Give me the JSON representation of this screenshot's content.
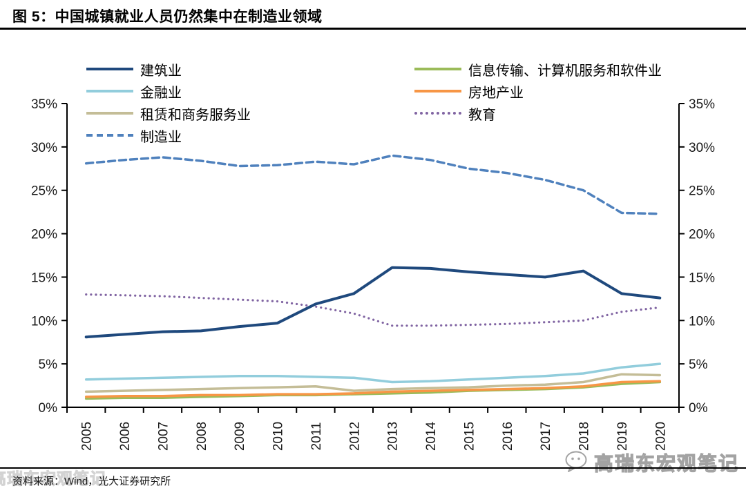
{
  "title": "图 5：中国城镇就业人员仍然集中在制造业领域",
  "source": "资料来源：Wind，光大证券研究所",
  "watermark_text": "高瑞东宏观笔记",
  "watermark_icon": "wechat-bubble-icon",
  "colors": {
    "axis": "#000000",
    "tick_label": "#1a1a1a",
    "construction": "#1F497D",
    "finance": "#92CDDC",
    "leasing": "#C4BD97",
    "manufacturing": "#4F81BD",
    "it_software": "#9BBB59",
    "real_estate": "#F79646",
    "education": "#8064A2"
  },
  "chart_data": {
    "type": "line",
    "title": "图 5：中国城镇就业人员仍然集中在制造业领域",
    "xlabel": "",
    "ylabel": "",
    "ylim": [
      0,
      35
    ],
    "grid": false,
    "legend_position": "top",
    "y_ticks": [
      "0%",
      "5%",
      "10%",
      "15%",
      "20%",
      "25%",
      "30%",
      "35%"
    ],
    "x": [
      "2005",
      "2006",
      "2007",
      "2008",
      "2009",
      "2010",
      "2011",
      "2012",
      "2013",
      "2014",
      "2015",
      "2016",
      "2017",
      "2018",
      "2019",
      "2020"
    ],
    "series": [
      {
        "name": "建筑业",
        "color": "#1F497D",
        "style": "solid",
        "width": 4,
        "values": [
          8.1,
          8.4,
          8.7,
          8.8,
          9.3,
          9.7,
          11.9,
          13.1,
          16.1,
          16.0,
          15.6,
          15.3,
          15.0,
          15.7,
          13.1,
          12.6
        ]
      },
      {
        "name": "金融业",
        "color": "#92CDDC",
        "style": "solid",
        "width": 3.5,
        "values": [
          3.2,
          3.3,
          3.4,
          3.5,
          3.6,
          3.6,
          3.5,
          3.4,
          2.9,
          3.0,
          3.2,
          3.4,
          3.6,
          3.9,
          4.6,
          5.0
        ]
      },
      {
        "name": "租赁和商务服务业",
        "color": "#C4BD97",
        "style": "solid",
        "width": 3.5,
        "values": [
          1.8,
          1.9,
          2.0,
          2.1,
          2.2,
          2.3,
          2.4,
          1.9,
          2.1,
          2.2,
          2.3,
          2.5,
          2.6,
          2.9,
          3.8,
          3.7
        ]
      },
      {
        "name": "制造业",
        "color": "#4F81BD",
        "style": "dashed",
        "width": 3.5,
        "values": [
          28.1,
          28.5,
          28.8,
          28.4,
          27.8,
          27.9,
          28.3,
          28.0,
          29.0,
          28.5,
          27.5,
          27.0,
          26.2,
          25.0,
          22.4,
          22.3
        ]
      },
      {
        "name": "信息传输、计算机服务和软件业",
        "color": "#9BBB59",
        "style": "solid",
        "width": 3.5,
        "values": [
          1.0,
          1.1,
          1.1,
          1.2,
          1.3,
          1.4,
          1.4,
          1.5,
          1.6,
          1.7,
          1.9,
          2.0,
          2.1,
          2.3,
          2.7,
          2.9
        ]
      },
      {
        "name": "房地产业",
        "color": "#F79646",
        "style": "solid",
        "width": 3.5,
        "values": [
          1.2,
          1.3,
          1.3,
          1.4,
          1.4,
          1.5,
          1.5,
          1.6,
          1.8,
          1.9,
          2.0,
          2.1,
          2.2,
          2.4,
          2.9,
          3.0
        ]
      },
      {
        "name": "教育",
        "color": "#8064A2",
        "style": "dotted",
        "width": 3.2,
        "values": [
          13.0,
          12.9,
          12.8,
          12.6,
          12.4,
          12.2,
          11.6,
          10.8,
          9.4,
          9.4,
          9.5,
          9.6,
          9.8,
          10.0,
          11.0,
          11.5
        ]
      }
    ]
  }
}
